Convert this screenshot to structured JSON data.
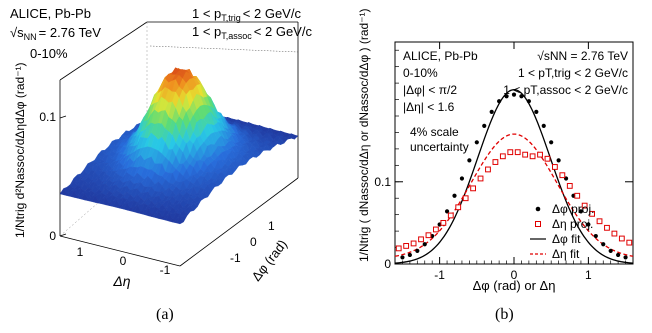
{
  "left_panel": {
    "texts": {
      "collab": "ALICE, Pb-Pb",
      "energy_prefix": "√s",
      "energy_sub": "NN",
      "energy_value": "= 2.76 TeV",
      "centrality": "0-10%",
      "trig_range": "1 < p",
      "trig_sub": "T,trig",
      "trig_tail": "< 2 GeV/c",
      "assoc_range": "1 < p",
      "assoc_sub": "T,assoc",
      "assoc_tail": "< 2 GeV/c",
      "zlabel": "1/Ntrig d²Nassoc/dΔηdΔφ (rad⁻¹)",
      "xlabel": "Δη",
      "ylabel": "Δφ (rad)"
    },
    "z_ticks": [
      "0",
      "0.1"
    ],
    "eta_ticks": [
      "1",
      "0",
      "-1"
    ],
    "phi_ticks": [
      "1",
      "0",
      "-1"
    ],
    "caption": "(a)"
  },
  "right_panel": {
    "texts": {
      "collab": "ALICE, Pb-Pb",
      "energy": "√sNN = 2.76 TeV",
      "centrality": "0-10%",
      "trig": "1 < pT,trig < 2 GeV/c",
      "assoc": "1 < pT,assoc < 2 GeV/c",
      "dphi_cut": "|Δφ| < π/2",
      "deta_cut": "|Δη| < 1.6",
      "scale1": "4% scale",
      "scale2": "uncertainty",
      "ylabel": "1/Ntrig ( dNassoc/dΔη or dNassoc/dΔφ ) (rad⁻¹)",
      "xlabel": "Δφ (rad)  or  Δη"
    },
    "caption": "(b)",
    "legend": [
      {
        "label": "Δφ proj.",
        "marker": "filled-circle",
        "color": "#000000"
      },
      {
        "label": "Δη proj.",
        "marker": "open-square",
        "color": "#e00000"
      },
      {
        "label": "Δφ fit",
        "marker": "solid-line",
        "color": "#000000"
      },
      {
        "label": "Δη fit",
        "marker": "dashed-line",
        "color": "#e00000"
      }
    ]
  },
  "chart_data": [
    {
      "type": "heatmap",
      "title": "",
      "xlabel": "Δη",
      "ylabel": "Δφ (rad)",
      "zlabel": "1/Ntrig d²Nassoc/dΔηdΔφ (rad⁻¹)",
      "xlim": [
        -1.6,
        1.6
      ],
      "ylim": [
        -1.57,
        1.57
      ],
      "zlim": [
        0,
        0.13
      ],
      "peak": {
        "x": 0,
        "y": 0,
        "z": 0.12
      },
      "surface_base_z": 0.045
    },
    {
      "type": "scatter",
      "title": "",
      "xlabel": "Δφ (rad)  or  Δη",
      "ylabel": "1/Ntrig ( dNassoc/dΔη or dNassoc/dΔφ ) (rad⁻¹)",
      "xlim": [
        -1.6,
        1.6
      ],
      "ylim": [
        0,
        0.27
      ],
      "xticks": [
        -1,
        0,
        1
      ],
      "yticks": [
        0,
        0.1
      ],
      "legend_position": "center-right",
      "series": [
        {
          "name": "Δφ proj.",
          "style": "points",
          "color": "#000000",
          "x": [
            -1.5,
            -1.4,
            -1.3,
            -1.2,
            -1.1,
            -1.0,
            -0.9,
            -0.8,
            -0.7,
            -0.6,
            -0.5,
            -0.4,
            -0.3,
            -0.2,
            -0.1,
            0.0,
            0.1,
            0.2,
            0.3,
            0.4,
            0.5,
            0.6,
            0.7,
            0.8,
            0.9,
            1.0,
            1.1,
            1.2,
            1.3,
            1.4,
            1.5
          ],
          "y": [
            0.008,
            0.011,
            0.016,
            0.024,
            0.034,
            0.048,
            0.064,
            0.083,
            0.104,
            0.126,
            0.148,
            0.168,
            0.185,
            0.198,
            0.204,
            0.206,
            0.204,
            0.198,
            0.185,
            0.168,
            0.148,
            0.126,
            0.104,
            0.083,
            0.064,
            0.048,
            0.034,
            0.024,
            0.016,
            0.011,
            0.008
          ]
        },
        {
          "name": "Δη proj.",
          "style": "points",
          "color": "#e00000",
          "x": [
            -1.55,
            -1.45,
            -1.35,
            -1.25,
            -1.15,
            -1.05,
            -0.95,
            -0.85,
            -0.75,
            -0.65,
            -0.55,
            -0.45,
            -0.35,
            -0.25,
            -0.15,
            -0.05,
            0.05,
            0.15,
            0.25,
            0.35,
            0.45,
            0.55,
            0.65,
            0.75,
            0.85,
            0.95,
            1.05,
            1.15,
            1.25,
            1.35,
            1.45,
            1.55
          ],
          "y": [
            0.019,
            0.022,
            0.025,
            0.03,
            0.035,
            0.042,
            0.05,
            0.059,
            0.069,
            0.08,
            0.092,
            0.104,
            0.115,
            0.124,
            0.131,
            0.136,
            0.136,
            0.133,
            0.131,
            0.133,
            0.128,
            0.118,
            0.108,
            0.095,
            0.083,
            0.071,
            0.061,
            0.052,
            0.044,
            0.037,
            0.031,
            0.026
          ]
        },
        {
          "name": "Δφ fit",
          "style": "solid",
          "color": "#000000",
          "amplitude": 0.212,
          "sigma": 0.49
        },
        {
          "name": "Δη fit",
          "style": "dashed",
          "color": "#e00000",
          "amplitude": 0.152,
          "sigma": 0.58,
          "baseline": 0.006
        }
      ]
    }
  ]
}
